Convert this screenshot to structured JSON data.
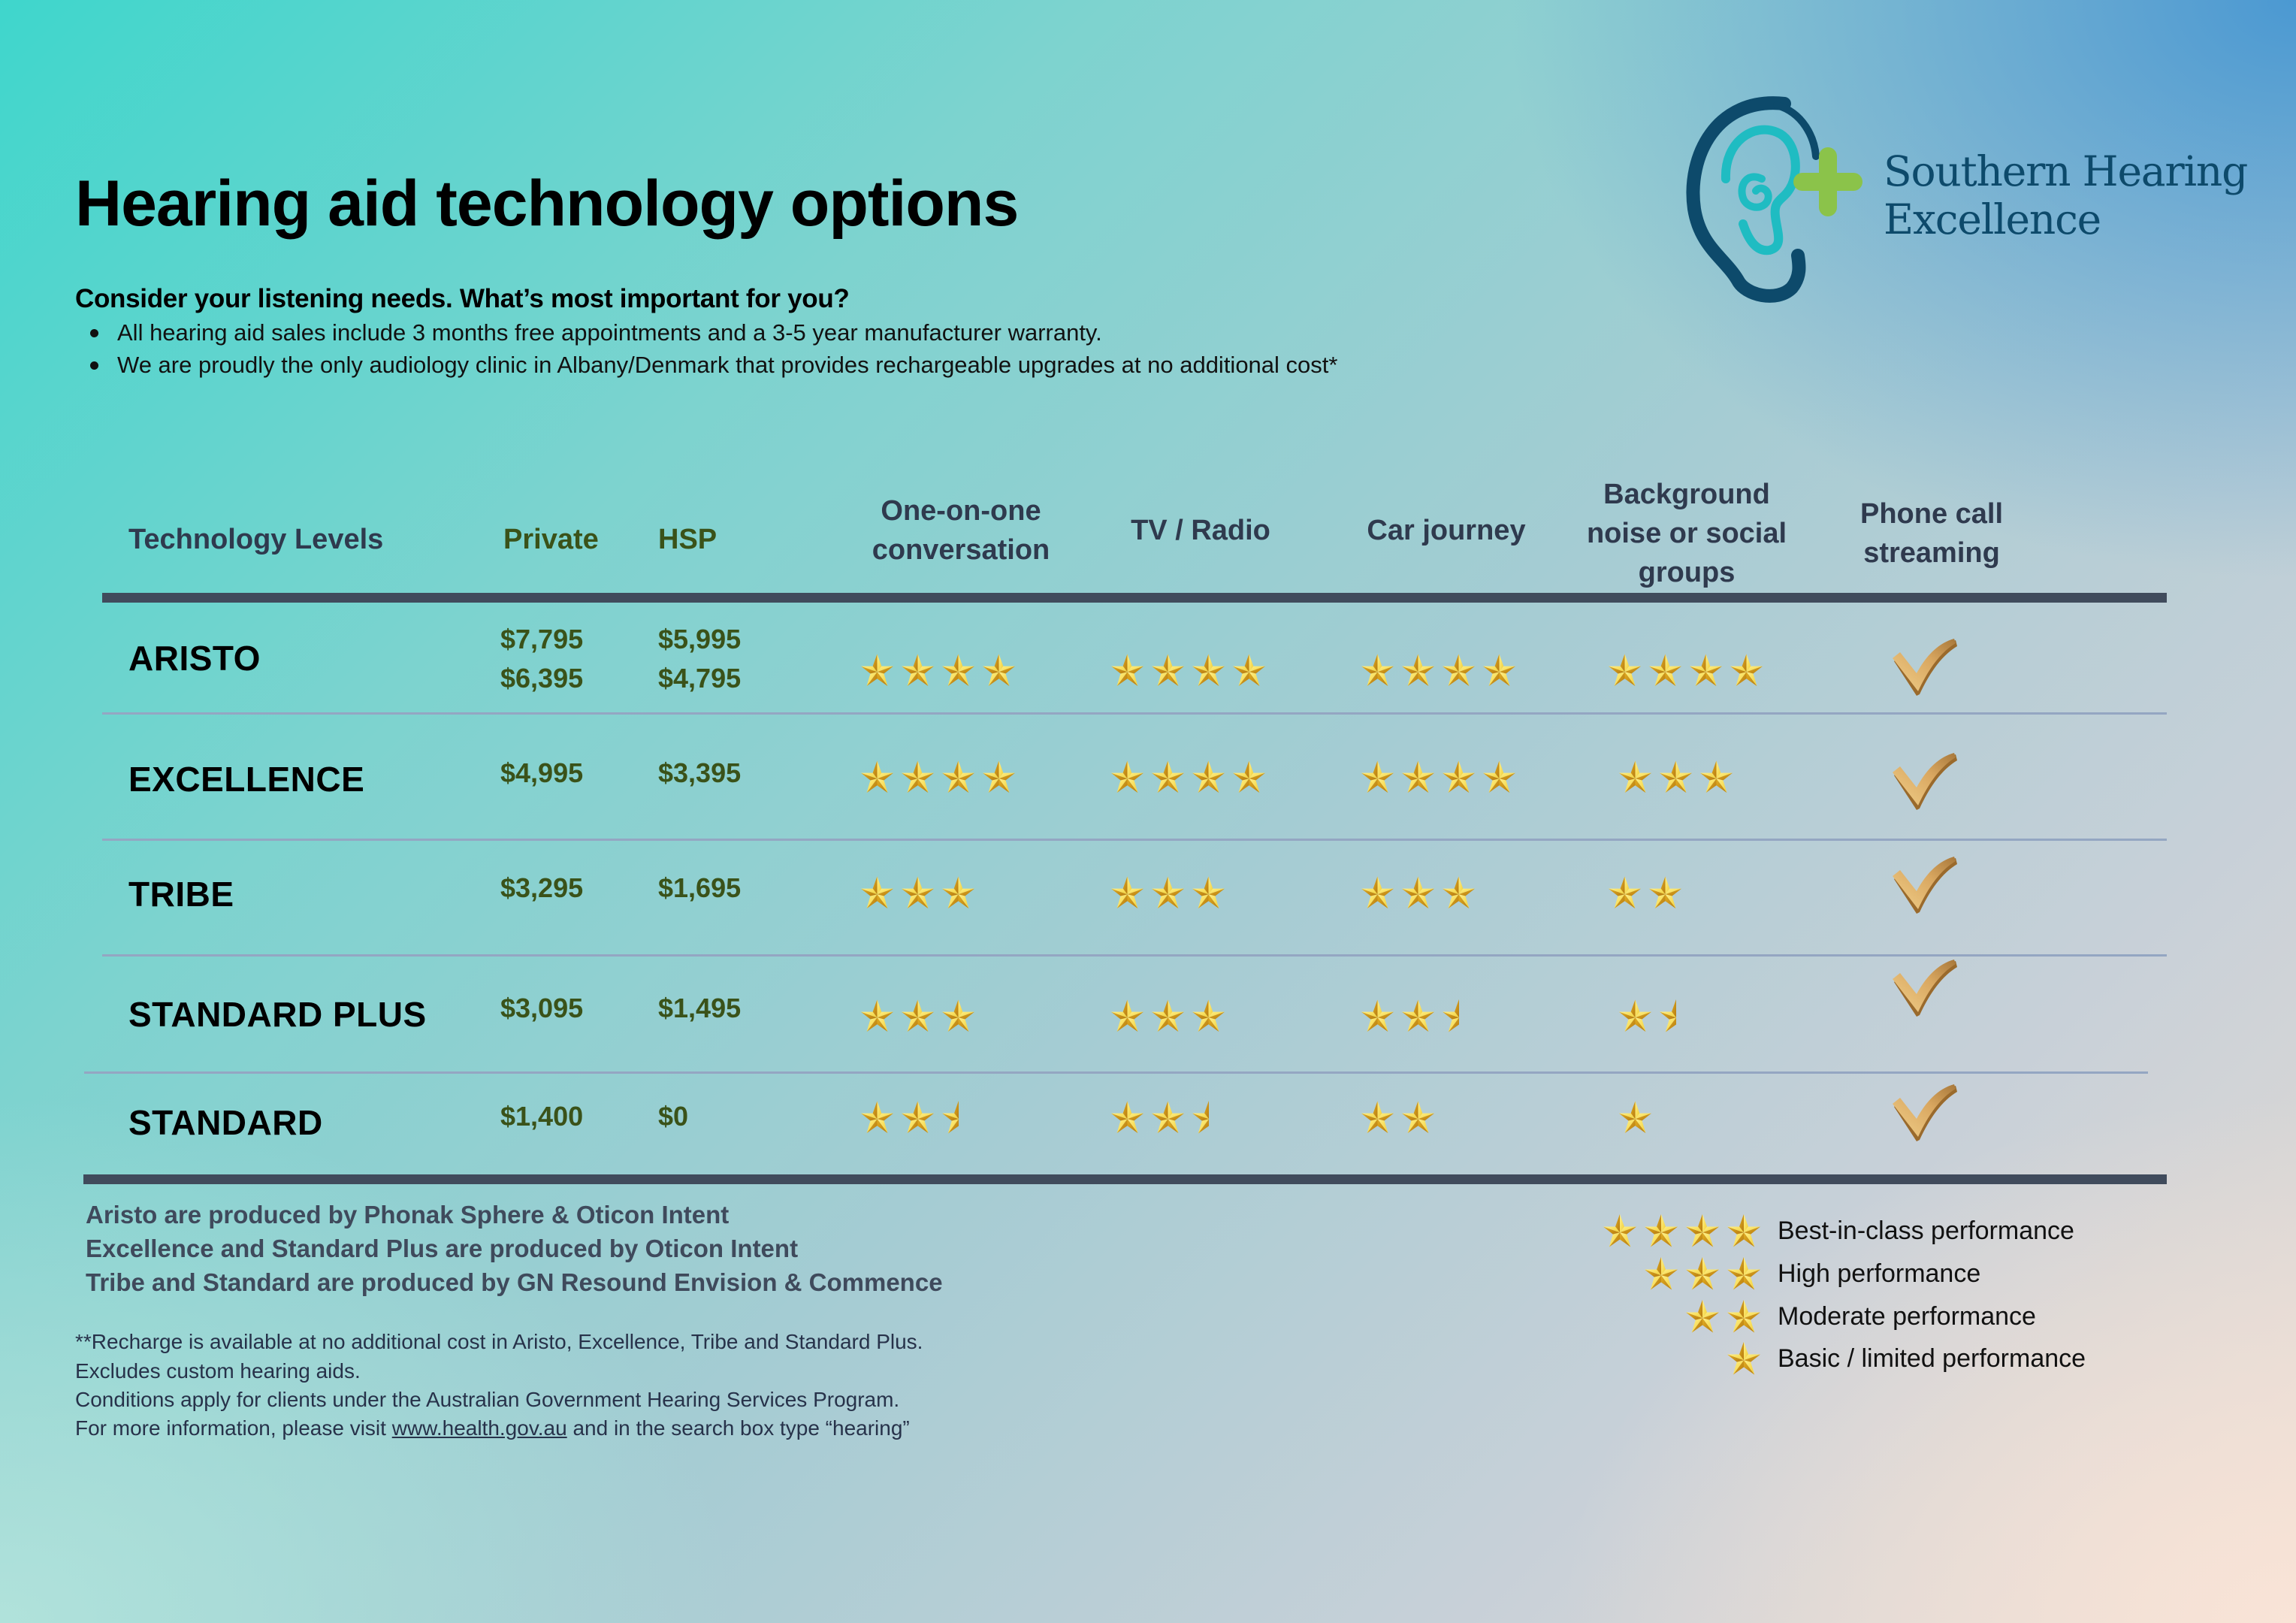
{
  "header": {
    "title": "Hearing aid technology options",
    "subtitle": "Consider your listening needs. What’s most important for you?",
    "bullets": [
      "All hearing aid sales include 3 months free appointments and a 3-5 year manufacturer warranty.",
      "We are proudly the only audiology clinic in Albany/Denmark that provides rechargeable upgrades at no additional cost*"
    ]
  },
  "logo": {
    "line1": "Southern Hearing",
    "line2": "Excellence",
    "colors": {
      "ear_outer": "#0d4a6b",
      "ear_inner": "#1fbcc2",
      "plus": "#8bc34a",
      "text": "#0d4a6b"
    }
  },
  "table": {
    "columns": {
      "level": "Technology Levels",
      "private": "Private",
      "hsp": "HSP",
      "one_on_one": [
        "One-on-one",
        "conversation"
      ],
      "tv_radio": "TV / Radio",
      "car": "Car journey",
      "background": [
        "Background",
        "noise or social",
        "groups"
      ],
      "phone": [
        "Phone call",
        "streaming"
      ]
    },
    "rows": [
      {
        "name": "ARISTO",
        "private": [
          "$7,795",
          "$6,395"
        ],
        "hsp": [
          "$5,995",
          "$4,795"
        ],
        "ratings": {
          "one_on_one": 4,
          "tv_radio": 4,
          "car": 4,
          "background": 4
        },
        "phone_streaming": true
      },
      {
        "name": "EXCELLENCE",
        "private": [
          "$4,995"
        ],
        "hsp": [
          "$3,395"
        ],
        "ratings": {
          "one_on_one": 4,
          "tv_radio": 4,
          "car": 4,
          "background": 3
        },
        "phone_streaming": true
      },
      {
        "name": "TRIBE",
        "private": [
          "$3,295"
        ],
        "hsp": [
          "$1,695"
        ],
        "ratings": {
          "one_on_one": 3,
          "tv_radio": 3,
          "car": 3,
          "background": 2
        },
        "phone_streaming": true
      },
      {
        "name": "STANDARD PLUS",
        "private": [
          "$3,095"
        ],
        "hsp": [
          "$1,495"
        ],
        "ratings": {
          "one_on_one": 3,
          "tv_radio": 3,
          "car": 2.5,
          "background": 1.5
        },
        "phone_streaming": true
      },
      {
        "name": "STANDARD",
        "private": [
          "$1,400"
        ],
        "hsp": [
          "$0"
        ],
        "ratings": {
          "one_on_one": 2.5,
          "tv_radio": 2.5,
          "car": 2,
          "background": 1
        },
        "phone_streaming": true
      }
    ],
    "max_rating": 4,
    "colors": {
      "rule": "#404b5c",
      "price": "#3a5219",
      "star": "#f2d03b",
      "check": "#c9974a"
    }
  },
  "manufacturers": [
    "Aristo are produced by Phonak Sphere & Oticon Intent",
    "Excellence and  Standard Plus are produced by Oticon Intent",
    "Tribe and Standard are produced by GN Resound Envision & Commence"
  ],
  "footnotes": {
    "line1": "**Recharge is available at no additional cost in Aristo, Excellence, Tribe and Standard Plus.",
    "line2": "Excludes custom hearing aids.",
    "line3": "Conditions apply for clients under the Australian Government Hearing Services Program.",
    "line4_prefix": "For more information, please visit ",
    "line4_link": "www.health.gov.au",
    "line4_suffix": " and in the search box type “hearing”"
  },
  "legend": [
    {
      "stars": 4,
      "label": "Best-in-class performance"
    },
    {
      "stars": 3,
      "label": "High performance"
    },
    {
      "stars": 2,
      "label": "Moderate performance"
    },
    {
      "stars": 1,
      "label": "Basic / limited performance"
    }
  ]
}
